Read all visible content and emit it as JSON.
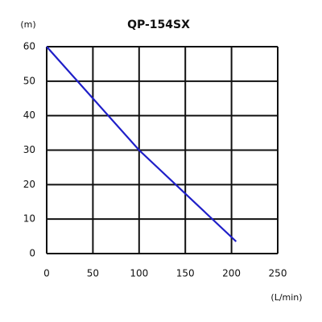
{
  "chart_data": {
    "type": "line",
    "title": "QP-154SX",
    "y_label": "(m)",
    "x_label": "(L/min)",
    "x": [
      0,
      100,
      205
    ],
    "series": [
      {
        "color": "#1f1fc8",
        "values": [
          60,
          30,
          3.5
        ]
      }
    ],
    "xlim": [
      0,
      250
    ],
    "xticks": [
      0,
      50,
      100,
      150,
      200,
      250
    ],
    "ylim": [
      0,
      60
    ],
    "yticks": [
      0,
      10,
      20,
      30,
      40,
      50,
      60
    ],
    "grid": true
  }
}
